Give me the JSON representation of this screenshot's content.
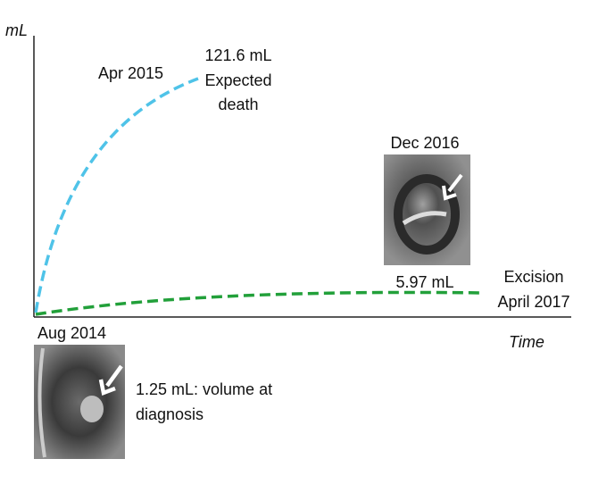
{
  "axes": {
    "y_label": "mL",
    "x_label": "Time"
  },
  "expected": {
    "date": "Apr 2015",
    "lines": [
      "121.6 mL",
      "Expected",
      "death"
    ]
  },
  "observed": {
    "date": "Dec 2016",
    "volume": "5.97 mL",
    "end": [
      "Excision",
      "April 2017"
    ]
  },
  "diagnosis": {
    "date": "Aug 2014",
    "lines": [
      "1.25 mL: volume at",
      "diagnosis"
    ]
  }
}
